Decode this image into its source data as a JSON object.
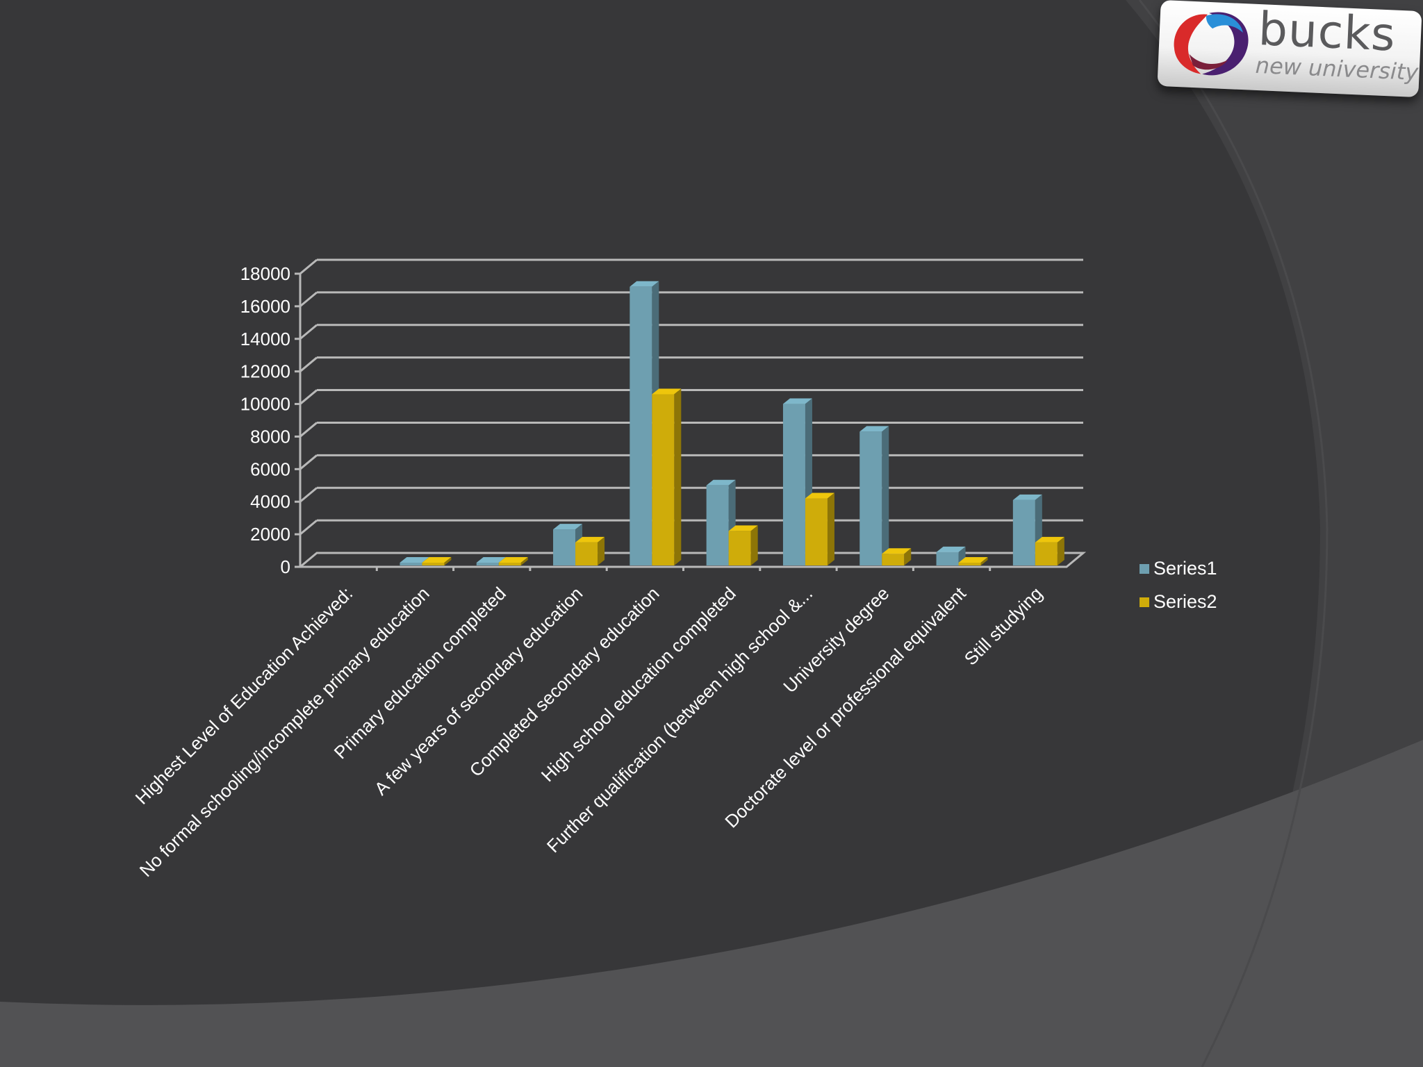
{
  "logo": {
    "word": "bucks",
    "sub": "new university"
  },
  "colors": {
    "background": "#373739",
    "series1": "#6e9fb0",
    "series2": "#cfac0a",
    "grid": "#b9b9b9",
    "text": "#ffffff"
  },
  "chart_data": {
    "type": "bar",
    "title": "",
    "xlabel": "",
    "ylabel": "",
    "ylim": [
      0,
      18000
    ],
    "yticks": [
      "0",
      "2000",
      "4000",
      "6000",
      "8000",
      "10000",
      "12000",
      "14000",
      "16000",
      "18000"
    ],
    "categories": [
      "Highest Level of Education Achieved:",
      "No formal schooling/incomplete primary education",
      "Primary education completed",
      "A few years of secondary education",
      "Completed secondary education",
      "High school education completed",
      "Further qualification (between high school &...",
      "University degree",
      "Doctorate level or professional equivalent",
      "Still studying"
    ],
    "series": [
      {
        "name": "Series1",
        "values": [
          0,
          100,
          250,
          2300,
          17200,
          5000,
          10000,
          8300,
          900,
          4100
        ]
      },
      {
        "name": "Series2",
        "values": [
          0,
          80,
          150,
          1500,
          10600,
          2200,
          4200,
          800,
          50,
          1500
        ]
      }
    ],
    "legend": "right",
    "grid": true
  }
}
